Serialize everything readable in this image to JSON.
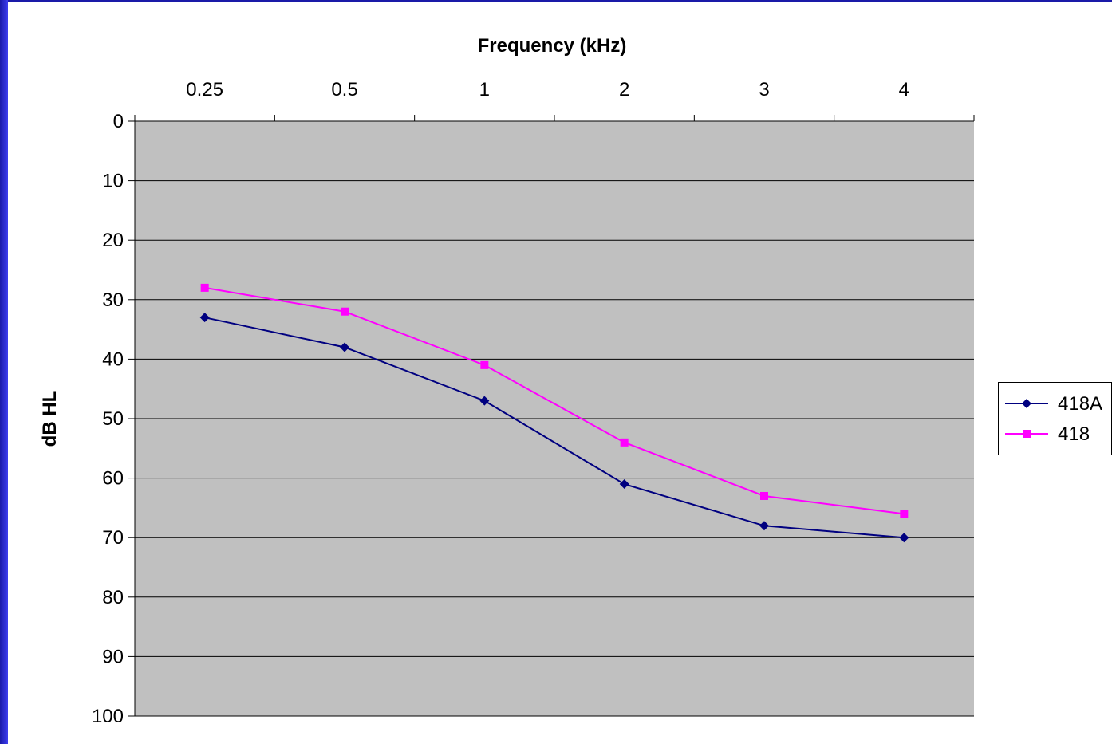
{
  "chart_data": {
    "type": "line",
    "title": "Frequency (kHz)",
    "xlabel": "Frequency (kHz)",
    "ylabel": "dB HL",
    "categories": [
      "0.25",
      "0.5",
      "1",
      "2",
      "3",
      "4"
    ],
    "y_ticks": [
      "0",
      "10",
      "20",
      "30",
      "40",
      "50",
      "60",
      "70",
      "80",
      "90",
      "100"
    ],
    "ylim": [
      0,
      100
    ],
    "y_reversed": true,
    "x_axis_position": "top",
    "grid": "horizontal",
    "plot_background": "#c0c0c0",
    "legend_position": "right",
    "series": [
      {
        "name": "418A",
        "color": "#000080",
        "marker": "diamond",
        "values": [
          33,
          38,
          47,
          61,
          68,
          70
        ]
      },
      {
        "name": "418",
        "color": "#ff00ff",
        "marker": "square",
        "values": [
          28,
          32,
          41,
          54,
          63,
          66
        ]
      }
    ]
  }
}
